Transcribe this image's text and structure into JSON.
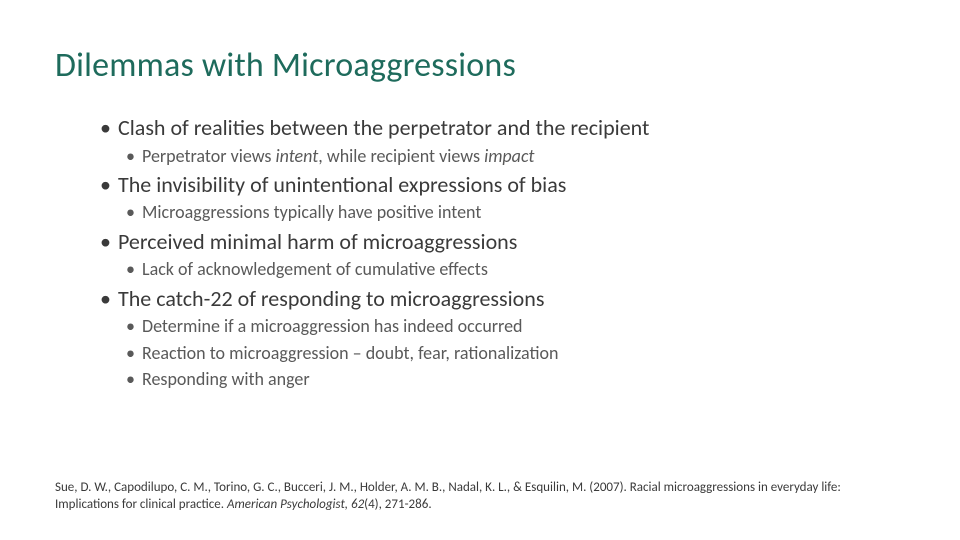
{
  "title": "Dilemmas with Microaggressions",
  "title_color": "#1e6b5c",
  "background_color": "#ffffff",
  "body_text_color": "#3a3a3a",
  "sub_text_color": "#595959",
  "title_fontsize": 34,
  "l1_fontsize": 22,
  "l2_fontsize": 18,
  "citation_fontsize": 13,
  "bullets": {
    "b1": "Clash of realities between the perpetrator and the recipient",
    "b1s1_a": "Perpetrator views ",
    "b1s1_i1": "intent",
    "b1s1_b": ", while recipient views ",
    "b1s1_i2": "impact",
    "b2": "The invisibility of unintentional expressions of bias",
    "b2s1": "Microaggressions typically have positive intent",
    "b3": "Perceived minimal harm of microaggressions",
    "b3s1": "Lack of acknowledgement of cumulative effects",
    "b4": "The catch-22 of responding to microaggressions",
    "b4s1": "Determine if a microaggression has indeed occurred",
    "b4s2": "Reaction to microaggression – doubt, fear, rationalization",
    "b4s3": "Responding with anger"
  },
  "citation": {
    "prefix": "Sue, D. W., Capodilupo, C. M., Torino, G. C., Bucceri, J. M., Holder, A. M. B., Nadal, K. L., & Esquilin, M. (2007). Racial microaggressions in everyday life: Implications for clinical practice. ",
    "journal": "American Psychologist, 62",
    "suffix": "(4), 271-286."
  }
}
